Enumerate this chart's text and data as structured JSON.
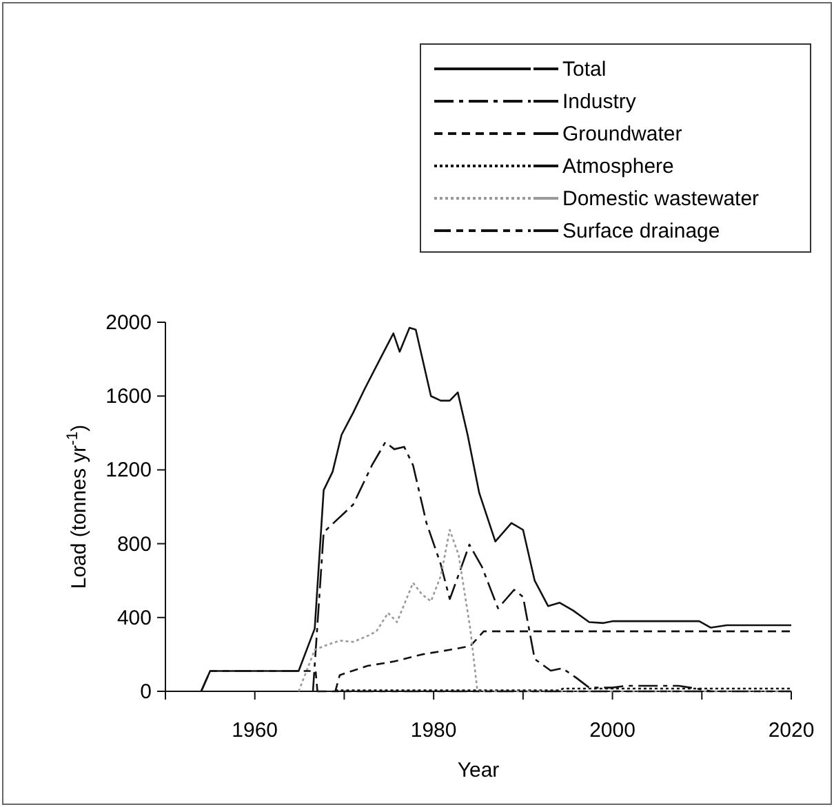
{
  "chart_data": {
    "type": "line",
    "xlabel": "Year",
    "ylabel": "Load (tonnes yr$^{-1}$)",
    "xlim": [
      1950,
      2020
    ],
    "xticks": [
      {
        "value": 1950,
        "label": null
      },
      1960,
      {
        "value": 1970,
        "label": null
      },
      1980,
      {
        "value": 1990,
        "label": null
      },
      2000,
      {
        "value": 2010,
        "label": null
      },
      2020
    ],
    "ylim": [
      0,
      2000
    ],
    "yticks": [
      0,
      400,
      800,
      1200,
      1600,
      2000
    ],
    "grid": false,
    "legend": "top right",
    "marker": "none",
    "series": [
      {
        "name": "Total",
        "color": "#111111",
        "line_style": "solid",
        "x": [
          1954,
          1955,
          1964.9,
          1966.7,
          1967.7,
          1968.7,
          1969.7,
          1971,
          1972.3,
          1974,
          1975.5,
          1976.2,
          1977.3,
          1978,
          1979.7,
          1980.8,
          1981.8,
          1982.7,
          1983.8,
          1985.1,
          1986.9,
          1988.7,
          1990,
          1991.3,
          1992.8,
          1994.1,
          1995.6,
          1997.4,
          1999,
          2000,
          2009.7,
          2011,
          2012.8,
          2020
        ],
        "values": [
          0,
          110,
          110,
          340,
          1090,
          1190,
          1390,
          1510,
          1640,
          1800,
          1940,
          1840,
          1970,
          1960,
          1600,
          1575,
          1575,
          1620,
          1390,
          1075,
          812,
          912,
          875,
          600,
          462,
          480,
          438,
          375,
          370,
          380,
          380,
          345,
          358,
          358
        ]
      },
      {
        "name": "Industry",
        "color": "#111111",
        "line_style": "dashdot",
        "x": [
          1966.5,
          1967.7,
          1971,
          1973.1,
          1974.6,
          1975.6,
          1976.7,
          1977.7,
          1979.2,
          1980.8,
          1981.8,
          1982,
          1984,
          1985.4,
          1987.2,
          1989,
          1990,
          1991.3,
          1993.1,
          1994.4,
          1995.9,
          1997.4,
          2000,
          2001.5,
          2007.4,
          2008.7,
          2010,
          2011
        ],
        "values": [
          0,
          862,
          1012,
          1225,
          1350,
          1312,
          1325,
          1225,
          912,
          688,
          500,
          525,
          795,
          675,
          450,
          550,
          512,
          175,
          112,
          125,
          75,
          20,
          20,
          30,
          30,
          20,
          10,
          0
        ]
      },
      {
        "name": "Groundwater",
        "color": "#111111",
        "line_style": "dashed",
        "x": [
          1969,
          1969.5,
          1972.6,
          1975.6,
          1978.7,
          1981.8,
          1984.1,
          1985.6,
          2020
        ],
        "values": [
          0,
          88,
          138,
          162,
          200,
          225,
          245,
          325,
          325
        ]
      },
      {
        "name": "Atmosphere",
        "color": "#111111",
        "line_style": "dotted",
        "x": [
          1969,
          1994,
          1994.5,
          2020
        ],
        "values": [
          5,
          5,
          15,
          15
        ]
      },
      {
        "name": "Domestic wastewater",
        "color": "#999999",
        "line_style": "dotted",
        "x": [
          1964.9,
          1966.7,
          1968,
          1969.5,
          1971,
          1972.6,
          1973.6,
          1974.9,
          1975.9,
          1977.7,
          1978.7,
          1979.7,
          1980.8,
          1981.8,
          1982.8,
          1984.1,
          1984.9,
          2020
        ],
        "values": [
          0,
          225,
          250,
          275,
          268,
          300,
          325,
          425,
          375,
          588,
          525,
          488,
          625,
          875,
          738,
          338,
          0,
          0
        ]
      },
      {
        "name": "Surface drainage",
        "color": "#111111",
        "line_style": "longdash",
        "x": [
          1954,
          1955,
          1966.8,
          1967,
          2020
        ],
        "values": [
          0,
          110,
          110,
          0,
          0
        ]
      }
    ]
  }
}
